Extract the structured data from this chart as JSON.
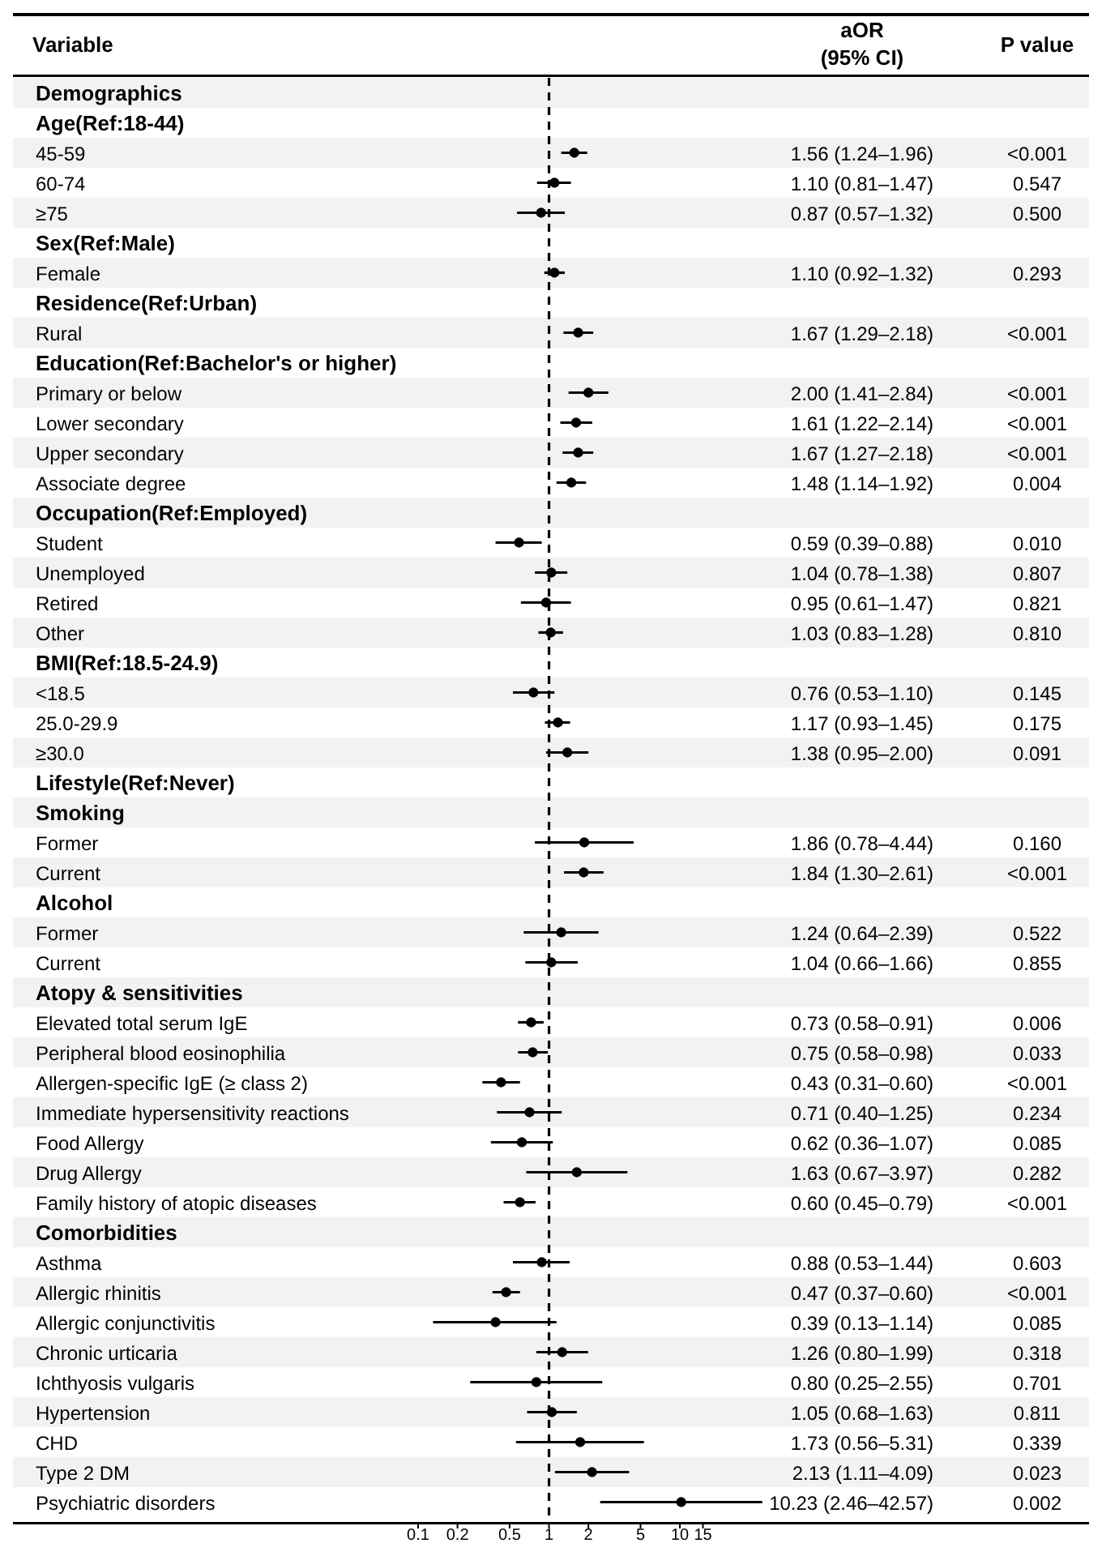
{
  "chart_data": {
    "type": "scatter",
    "orientation": "horizontal",
    "log": "x",
    "marker": "circle",
    "grid": false,
    "ylabel": "Variable",
    "categories": [
      "Demographics",
      "Age(Ref:18-44)",
      "45-59",
      "60-74",
      "≥75",
      "Sex(Ref:Male)",
      "Female",
      "Residence(Ref:Urban)",
      "Rural",
      "Education(Ref:Bachelor's or higher)",
      "Primary or below",
      "Lower secondary",
      "Upper secondary",
      "Associate degree",
      "Occupation(Ref:Employed)",
      "Student",
      "Unemployed",
      "Retired",
      "Other",
      "BMI(Ref:18.5-24.9)",
      "<18.5",
      "25.0-29.9",
      "≥30.0",
      "Lifestyle(Ref:Never)",
      "Smoking",
      "Former",
      "Current",
      "Alcohol",
      "Former",
      "Current",
      "Atopy & sensitivities",
      "Elevated total serum IgE",
      "Peripheral blood eosinophilia",
      "Allergen-specific IgE (≥ class 2)",
      "Immediate hypersensitivity reactions",
      "Food Allergy",
      "Drug Allergy",
      "Family history of atopic diseases",
      "Comorbidities",
      "Asthma",
      "Allergic rhinitis",
      "Allergic conjunctivitis",
      "Chronic urticaria",
      "Ichthyosis vulgaris",
      "Hypertension",
      "CHD",
      "Type 2 DM",
      "Psychiatric disorders"
    ],
    "series": [
      {
        "color": "#000000",
        "values": [
          null,
          null,
          1.56,
          1.1,
          0.87,
          null,
          1.1,
          null,
          1.67,
          null,
          2.0,
          1.61,
          1.67,
          1.48,
          null,
          0.59,
          1.04,
          0.95,
          1.03,
          null,
          0.76,
          1.17,
          1.38,
          null,
          null,
          1.86,
          1.84,
          null,
          1.24,
          1.04,
          null,
          0.73,
          0.75,
          0.43,
          0.71,
          0.62,
          1.63,
          0.6,
          null,
          0.88,
          0.47,
          0.39,
          1.26,
          0.8,
          1.05,
          1.73,
          2.13,
          10.23
        ],
        "errors": [
          null,
          null,
          [
            1.24,
            1.96
          ],
          [
            0.81,
            1.47
          ],
          [
            0.57,
            1.32
          ],
          null,
          [
            0.92,
            1.32
          ],
          null,
          [
            1.29,
            2.18
          ],
          null,
          [
            1.41,
            2.84
          ],
          [
            1.22,
            2.14
          ],
          [
            1.27,
            2.18
          ],
          [
            1.14,
            1.92
          ],
          null,
          [
            0.39,
            0.88
          ],
          [
            0.78,
            1.38
          ],
          [
            0.61,
            1.47
          ],
          [
            0.83,
            1.28
          ],
          null,
          [
            0.53,
            1.1
          ],
          [
            0.93,
            1.45
          ],
          [
            0.95,
            2.0
          ],
          null,
          null,
          [
            0.78,
            4.44
          ],
          [
            1.3,
            2.61
          ],
          null,
          [
            0.64,
            2.39
          ],
          [
            0.66,
            1.66
          ],
          null,
          [
            0.58,
            0.91
          ],
          [
            0.58,
            0.98
          ],
          [
            0.31,
            0.6
          ],
          [
            0.4,
            1.25
          ],
          [
            0.36,
            1.07
          ],
          [
            0.67,
            3.97
          ],
          [
            0.45,
            0.79
          ],
          null,
          [
            0.53,
            1.44
          ],
          [
            0.37,
            0.6
          ],
          [
            0.13,
            1.14
          ],
          [
            0.8,
            1.99
          ],
          [
            0.25,
            2.55
          ],
          [
            0.68,
            1.63
          ],
          [
            0.56,
            5.31
          ],
          [
            1.11,
            4.09
          ],
          [
            2.46,
            42.57
          ]
        ],
        "value_labels": [
          null,
          null,
          "1.56 (1.24–1.96)",
          "1.10 (0.81–1.47)",
          "0.87 (0.57–1.32)",
          null,
          "1.10 (0.92–1.32)",
          null,
          "1.67 (1.29–2.18)",
          null,
          "2.00 (1.41–2.84)",
          "1.61 (1.22–2.14)",
          "1.67 (1.27–2.18)",
          "1.48 (1.14–1.92)",
          null,
          "0.59 (0.39–0.88)",
          "1.04 (0.78–1.38)",
          "0.95 (0.61–1.47)",
          "1.03 (0.83–1.28)",
          null,
          "0.76 (0.53–1.10)",
          "1.17 (0.93–1.45)",
          "1.38 (0.95–2.00)",
          null,
          null,
          "1.86 (0.78–4.44)",
          "1.84 (1.30–2.61)",
          null,
          "1.24 (0.64–2.39)",
          "1.04 (0.66–1.66)",
          null,
          "0.73 (0.58–0.91)",
          "0.75 (0.58–0.98)",
          "0.43 (0.31–0.60)",
          "0.71 (0.40–1.25)",
          "0.62 (0.36–1.07)",
          "1.63 (0.67–3.97)",
          "0.60 (0.45–0.79)",
          null,
          "0.88 (0.53–1.44)",
          "0.47 (0.37–0.60)",
          "0.39 (0.13–1.14)",
          "1.26 (0.80–1.99)",
          "0.80 (0.25–2.55)",
          "1.05 (0.68–1.63)",
          "1.73 (0.56–5.31)",
          "2.13 (1.11–4.09)",
          "10.23 (2.46–42.57)"
        ]
      }
    ],
    "xlim": [
      0.1,
      50
    ],
    "xticks": [
      0.1,
      0.2,
      0.5,
      1,
      2,
      5,
      10,
      15
    ],
    "ref_lines": [
      {
        "axis": "x",
        "value": 1,
        "line_style": "dashed"
      }
    ],
    "annotations": [
      "aOR\n(95% CI)",
      "P value",
      "<0.001",
      "0.547",
      "0.500",
      "0.293",
      "<0.001",
      "<0.001",
      "<0.001",
      "<0.001",
      "0.004",
      "0.010",
      "0.807",
      "0.821",
      "0.810",
      "0.145",
      "0.175",
      "0.091",
      "0.160",
      "<0.001",
      "0.522",
      "0.855",
      "0.006",
      "0.033",
      "<0.001",
      "0.234",
      "0.085",
      "0.282",
      "<0.001",
      "0.603",
      "<0.001",
      "0.085",
      "0.318",
      "0.701",
      "0.811",
      "0.339",
      "0.023",
      "0.002"
    ]
  }
}
